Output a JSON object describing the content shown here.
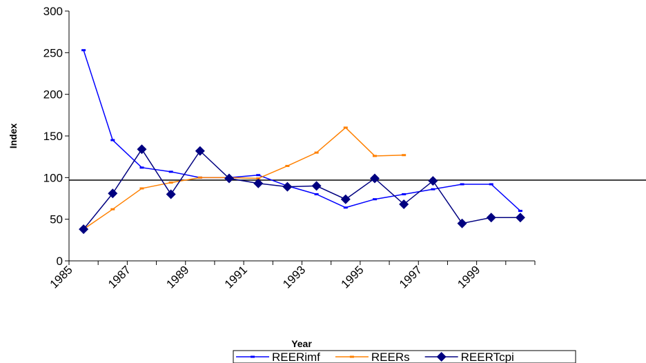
{
  "chart_data": {
    "type": "line",
    "x_label": "Year",
    "y_label": "Index",
    "categories": [
      "1985",
      null,
      "1987",
      null,
      "1989",
      null,
      "1991",
      null,
      "1993",
      null,
      "1995",
      null,
      "1997",
      null,
      "1999",
      null
    ],
    "series": [
      {
        "name": "REERimf",
        "color": "#0000ff",
        "marker": "dash",
        "values": [
          253,
          145,
          112,
          107,
          100,
          100,
          103,
          90,
          80,
          64,
          74,
          80,
          86,
          92,
          92,
          60
        ]
      },
      {
        "name": "REERs",
        "color": "#ff8000",
        "marker": "dash",
        "values": [
          38,
          62,
          87,
          94,
          100,
          100,
          99,
          114,
          130,
          160,
          126,
          127,
          null,
          null,
          null,
          null
        ]
      },
      {
        "name": "REERTcpi",
        "color": "#000080",
        "marker": "diamond",
        "values": [
          38,
          81,
          134,
          80,
          132,
          99,
          93,
          89,
          90,
          74,
          99,
          68,
          96,
          45,
          52,
          52
        ]
      }
    ],
    "reference_line": 97,
    "ylim": [
      0,
      300
    ],
    "yticks": [
      0,
      50,
      100,
      150,
      200,
      250,
      300
    ],
    "legend": "bottom"
  }
}
